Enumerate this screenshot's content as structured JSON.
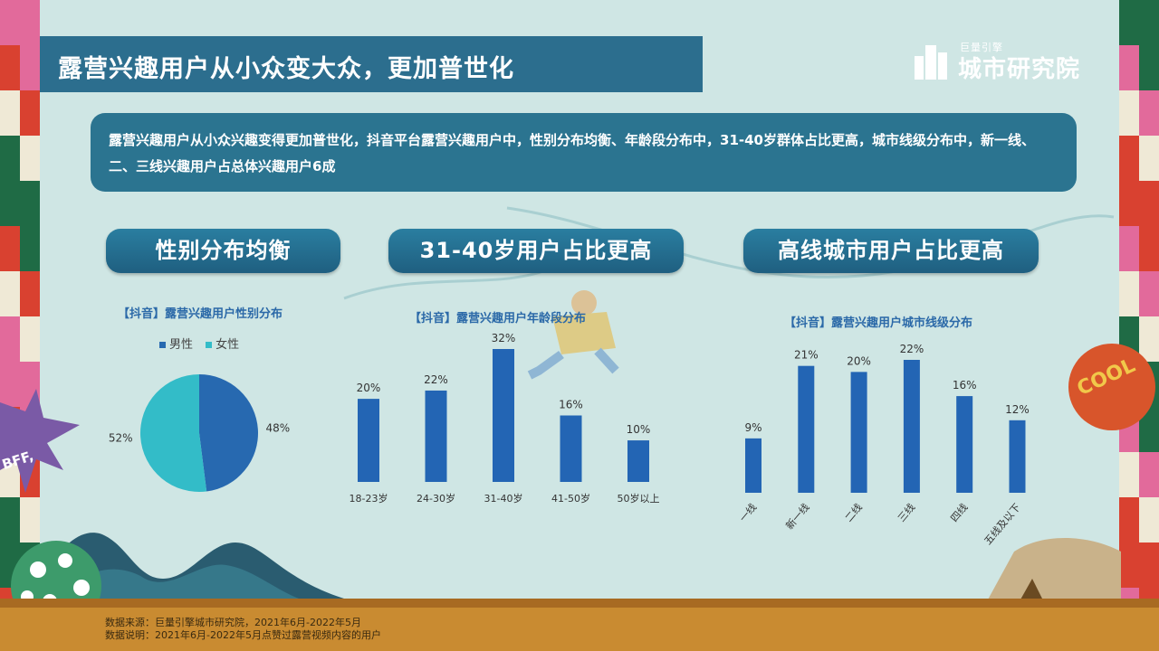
{
  "header": {
    "title": "露营兴趣用户从小众变大众，更加普世化",
    "logo_small": "巨量引擎",
    "logo_big": "城市研究院"
  },
  "summary": "露营兴趣用户从小众兴趣变得更加普世化，抖音平台露营兴趣用户中，性别分布均衡、年龄段分布中，31-40岁群体占比更高，城市线级分布中，新一线、二、三线兴趣用户占总体兴趣用户6成",
  "sections": [
    {
      "label": "性别分布均衡"
    },
    {
      "label": "31-40岁用户占比更高"
    },
    {
      "label": "高线城市用户占比更高"
    }
  ],
  "decor": {
    "sticker_left": "BFF,",
    "sticker_right": "COOL"
  },
  "footer": {
    "source": "数据来源：巨量引擎城市研究院，2021年6月-2022年5月",
    "note": "数据说明：2021年6月-2022年5月点赞过露营视频内容的用户"
  },
  "colors": {
    "bar": "#2365b4",
    "male": "#2769b0",
    "female": "#33bcc8"
  },
  "chart_data": [
    {
      "type": "pie",
      "title": "【抖音】露营兴趣用户性别分布",
      "legend_position": "top",
      "slices": [
        {
          "name": "男性",
          "value": 48,
          "label": "48%"
        },
        {
          "name": "女性",
          "value": 52,
          "label": "52%"
        }
      ]
    },
    {
      "type": "bar",
      "title": "【抖音】露营兴趣用户年龄段分布",
      "categories": [
        "18-23岁",
        "24-30岁",
        "31-40岁",
        "41-50岁",
        "50岁以上"
      ],
      "values": [
        20,
        22,
        32,
        16,
        10
      ],
      "labels": [
        "20%",
        "22%",
        "32%",
        "16%",
        "10%"
      ],
      "ylim": [
        0,
        32
      ]
    },
    {
      "type": "bar",
      "title": "【抖音】露营兴趣用户城市线级分布",
      "categories": [
        "一线",
        "新一线",
        "二线",
        "三线",
        "四线",
        "五线及以下"
      ],
      "values": [
        9,
        21,
        20,
        22,
        16,
        12
      ],
      "labels": [
        "9%",
        "21%",
        "20%",
        "22%",
        "16%",
        "12%"
      ],
      "ylim": [
        0,
        22
      ]
    }
  ]
}
